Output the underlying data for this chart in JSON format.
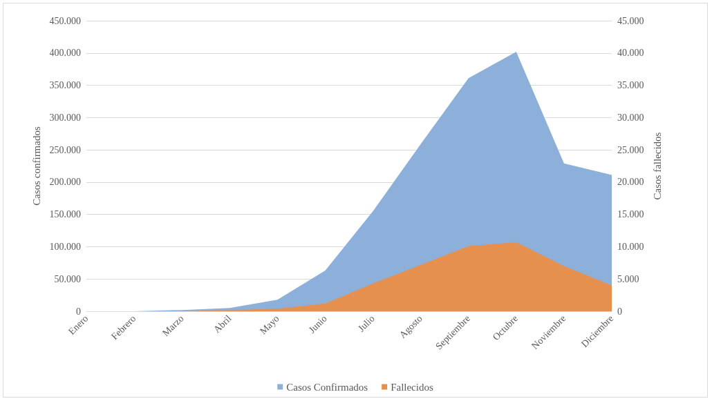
{
  "chart_data": {
    "type": "area",
    "ylabel": "Casos confirmados",
    "y2label": "Casos fallecidos",
    "categories": [
      "Enero",
      "Febrero",
      "Marzo",
      "Abril",
      "Mayo",
      "Junio",
      "Julio",
      "Agosto",
      "Septiembre",
      "Octubre",
      "Noviembre",
      "Diciembre"
    ],
    "series": [
      {
        "name": "Casos Confirmados",
        "color": "#8cb0da",
        "values": [
          0,
          0,
          2000,
          5000,
          18000,
          63000,
          155000,
          259000,
          361000,
          402000,
          229000,
          211000
        ]
      },
      {
        "name": "Fallecidos",
        "color": "#e6904f",
        "axis": "y2",
        "values": [
          0,
          0,
          0,
          200,
          400,
          1200,
          4300,
          7200,
          10100,
          10700,
          7000,
          4000
        ]
      }
    ],
    "ylim": [
      0,
      450000
    ],
    "yticks": [
      0,
      {
        "value": 50000,
        "label": "50.000"
      },
      {
        "value": 100000,
        "label": "100.000"
      },
      {
        "value": 150000,
        "label": "150.000"
      },
      {
        "value": 200000,
        "label": "200.000"
      },
      {
        "value": 250000,
        "label": "250.000"
      },
      {
        "value": 300000,
        "label": "300.000"
      },
      {
        "value": 350000,
        "label": "350.000"
      },
      {
        "value": 400000,
        "label": "400.000"
      },
      {
        "value": 450000,
        "label": "450.000"
      }
    ],
    "y2lim": [
      0,
      45000
    ],
    "y2ticks": [
      0,
      {
        "value": 5000,
        "label": "5.000"
      },
      {
        "value": 10000,
        "label": "10.000"
      },
      {
        "value": 15000,
        "label": "15.000"
      },
      {
        "value": 20000,
        "label": "20.000"
      },
      {
        "value": 25000,
        "label": "25.000"
      },
      {
        "value": 30000,
        "label": "30.000"
      },
      {
        "value": 35000,
        "label": "35.000"
      },
      {
        "value": 40000,
        "label": "40.000"
      },
      {
        "value": 45000,
        "label": "45.000"
      }
    ],
    "grid": "y",
    "legend": "bottom",
    "marker": "none"
  }
}
